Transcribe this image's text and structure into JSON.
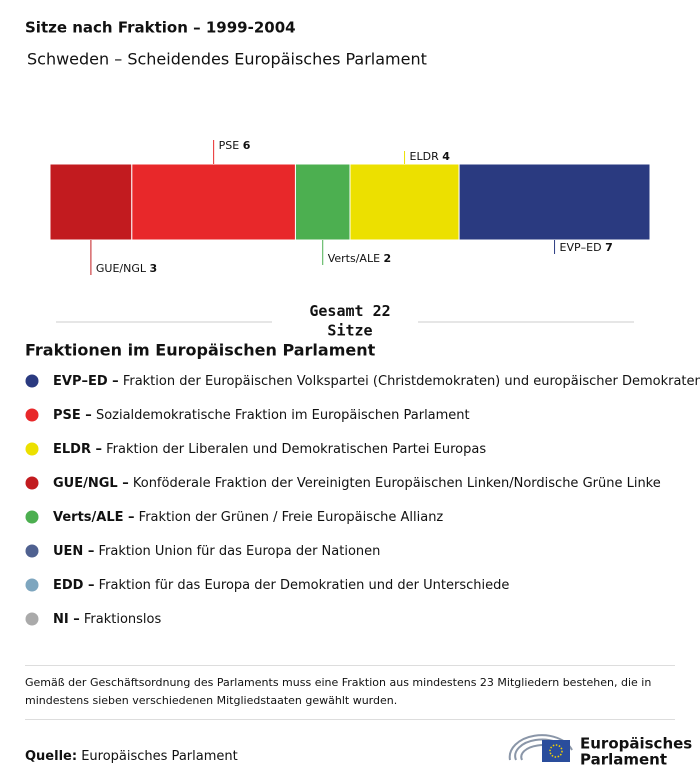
{
  "chart_data": {
    "type": "stacked-bar",
    "title": "Sitze nach Fraktion – 1999-2004",
    "subtitle": "Schweden – Scheidendes Europäisches Parlament",
    "series": [
      {
        "name": "GUE/NGL",
        "color": "#c21b1f",
        "values": [
          3
        ]
      },
      {
        "name": "PSE",
        "color": "#e8282a",
        "values": [
          6
        ]
      },
      {
        "name": "Verts/ALE",
        "color": "#4caf50",
        "values": [
          2
        ]
      },
      {
        "name": "ELDR",
        "color": "#ece000",
        "values": [
          4
        ]
      },
      {
        "name": "EVP–ED",
        "color": "#2a3a80",
        "values": [
          7
        ]
      }
    ],
    "total": {
      "label": "Gesamt",
      "value": 22,
      "unit": "Sitze"
    },
    "legend_title": "Fraktionen im Europäischen Parlament",
    "legend": [
      {
        "abbr": "EVP–ED –",
        "description": "Fraktion der Europäischen Volkspartei (Christdemokraten) und europäischer Demokraten",
        "color": "#2a3a80"
      },
      {
        "abbr": "PSE –",
        "description": "Sozialdemokratische Fraktion im Europäischen Parlament",
        "color": "#e8282a"
      },
      {
        "abbr": "ELDR –",
        "description": "Fraktion der Liberalen und Demokratischen Partei Europas",
        "color": "#ece000"
      },
      {
        "abbr": "GUE/NGL –",
        "description": "Konföderale Fraktion der Vereinigten Europäischen Linken/Nordische Grüne Linke",
        "color": "#c21b1f"
      },
      {
        "abbr": "Verts/ALE –",
        "description": "Fraktion der Grünen / Freie Europäische Allianz",
        "color": "#4caf50"
      },
      {
        "abbr": "UEN –",
        "description": "Fraktion Union für das Europa der Nationen",
        "color": "#4f6190"
      },
      {
        "abbr": "EDD –",
        "description": "Fraktion für das Europa der Demokratien und der Unterschiede",
        "color": "#7ea6bf"
      },
      {
        "abbr": "NI –",
        "description": "Fraktionslos",
        "color": "#aaaaaa"
      }
    ]
  },
  "footnote": "Gemäß der Geschäftsordnung des Parlaments muss eine Fraktion aus mindestens 23 Mitgliedern bestehen, die in mindestens sieben verschiedenen Mitgliedstaaten gewählt wurden.",
  "source": {
    "label": "Quelle:",
    "text": "Europäisches Parlament"
  },
  "logo": [
    "Europäisches",
    "Parlament"
  ]
}
